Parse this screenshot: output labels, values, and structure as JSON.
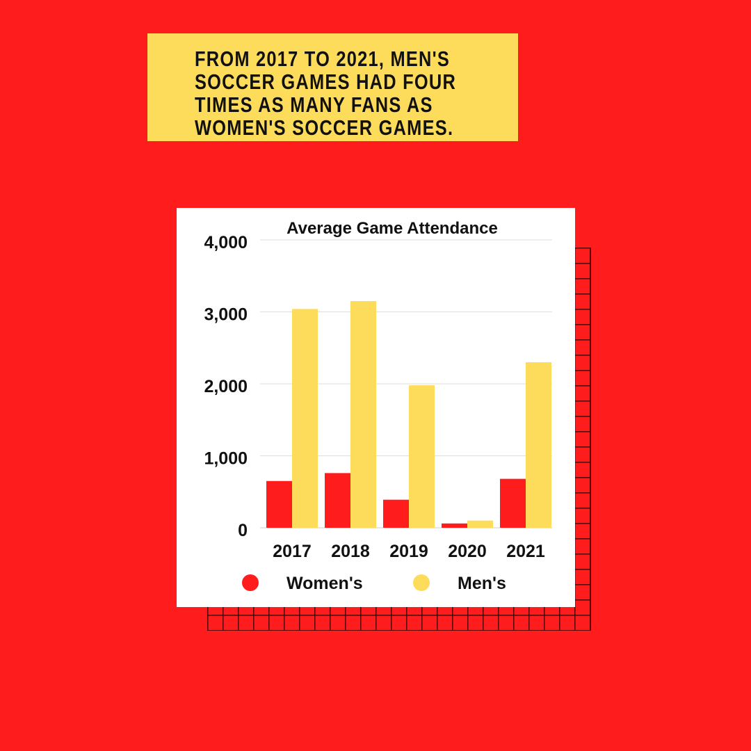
{
  "headline": {
    "lines": [
      "FROM 2017 TO 2021, MEN'S",
      "SOCCER GAMES HAD FOUR",
      "TIMES AS MANY FANS AS",
      "WOMEN'S SOCCER GAMES."
    ]
  },
  "colors": {
    "background": "#ff1c1c",
    "headline_box": "#fedc5b",
    "womens": "#ff1c1c",
    "mens": "#fedc5b",
    "gridline": "#dddddd",
    "text": "#111111"
  },
  "chart_data": {
    "type": "bar",
    "title": "Average Game Attendance",
    "xlabel": "",
    "ylabel": "",
    "categories": [
      "2017",
      "2018",
      "2019",
      "2020",
      "2021"
    ],
    "series": [
      {
        "name": "Women's",
        "color": "#ff1c1c",
        "values": [
          650,
          760,
          390,
          60,
          680
        ]
      },
      {
        "name": "Men's",
        "color": "#fedc5b",
        "values": [
          3040,
          3150,
          1980,
          100,
          2300
        ]
      }
    ],
    "ylim": [
      0,
      4000
    ],
    "yticks": [
      0,
      1000,
      2000,
      3000,
      4000
    ],
    "ytick_labels": [
      "0",
      "1,000",
      "2,000",
      "3,000",
      "4,000"
    ],
    "grid": true,
    "legend_position": "bottom"
  }
}
